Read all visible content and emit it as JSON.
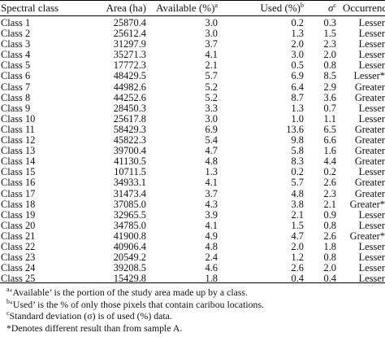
{
  "table": {
    "headers": {
      "spectral_class": "Spectral class",
      "area": "Area (ha)",
      "available": "Available (%)",
      "available_sup": "a",
      "used": "Used (%)",
      "used_sup": "b",
      "sigma": "σ",
      "sigma_sup": "c",
      "occurrence": "Occurrence"
    },
    "rows": [
      [
        "Class 1",
        "25870.4",
        "3.0",
        "0.2",
        "0.3",
        "Lesser"
      ],
      [
        "Class 2",
        "25612.4",
        "3.0",
        "1.3",
        "1.5",
        "Lesser"
      ],
      [
        "Class 3",
        "31297.9",
        "3.7",
        "2.0",
        "2.3",
        "Lesser"
      ],
      [
        "Class 4",
        "35271.3",
        "4.1",
        "3.0",
        "2.0",
        "Lesser"
      ],
      [
        "Class 5",
        "17772.3",
        "2.1",
        "0.5",
        "0.8",
        "Lesser"
      ],
      [
        "Class 6",
        "48429.5",
        "5.7",
        "6.9",
        "8.5",
        "Lesser*"
      ],
      [
        "Class 7",
        "44982.6",
        "5.2",
        "6.4",
        "2.9",
        "Greater"
      ],
      [
        "Class 8",
        "44252.6",
        "5.2",
        "8.7",
        "3.6",
        "Greater"
      ],
      [
        "Class 9",
        "28450.3",
        "3.3",
        "1.3",
        "0.7",
        "Lesser"
      ],
      [
        "Class 10",
        "25617.8",
        "3.0",
        "1.0",
        "1.1",
        "Lesser"
      ],
      [
        "Class 11",
        "58429.3",
        "6.9",
        "13.6",
        "6.5",
        "Greater"
      ],
      [
        "Class 12",
        "45822.3",
        "5.4",
        "9.8",
        "6.6",
        "Greater"
      ],
      [
        "Class 13",
        "39700.4",
        "4.7",
        "5.8",
        "1.6",
        "Greater"
      ],
      [
        "Class 14",
        "41130.5",
        "4.8",
        "8.3",
        "4.4",
        "Greater"
      ],
      [
        "Class 15",
        "10711.5",
        "1.3",
        "0.2",
        "0.2",
        "Lesser"
      ],
      [
        "Class 16",
        "34933.1",
        "4.1",
        "5.7",
        "2.6",
        "Greater"
      ],
      [
        "Class 17",
        "31473.4",
        "3.7",
        "4.8",
        "2.3",
        "Greater"
      ],
      [
        "Class 18",
        "37085.0",
        "4.3",
        "3.8",
        "2.1",
        "Greater*"
      ],
      [
        "Class 19",
        "32965.5",
        "3.9",
        "2.1",
        "0.9",
        "Lesser"
      ],
      [
        "Class 20",
        "34785.0",
        "4.1",
        "1.5",
        "0.8",
        "Lesser"
      ],
      [
        "Class 21",
        "41900.8",
        "4.9",
        "4.7",
        "2.6",
        "Greater*"
      ],
      [
        "Class 22",
        "40906.4",
        "4.8",
        "2.0",
        "1.8",
        "Lesser"
      ],
      [
        "Class 23",
        "20549.2",
        "2.4",
        "1.2",
        "0.8",
        "Lesser"
      ],
      [
        "Class 24",
        "39208.5",
        "4.6",
        "2.6",
        "2.0",
        "Lesser"
      ],
      [
        "Class 25",
        "15429.8",
        "1.8",
        "0.4",
        "0.4",
        "Lesser"
      ]
    ]
  },
  "footnotes": [
    {
      "mark": "a",
      "text": "‘Available’ is the portion of the study area made up by a class."
    },
    {
      "mark": "b",
      "text": "‘Used’ is the % of only those pixels that contain caribou locations."
    },
    {
      "mark": "c",
      "text": "Standard deviation (σ) is of used (%) data."
    },
    {
      "mark": "",
      "text": "*Denotes different result than from sample A."
    }
  ]
}
